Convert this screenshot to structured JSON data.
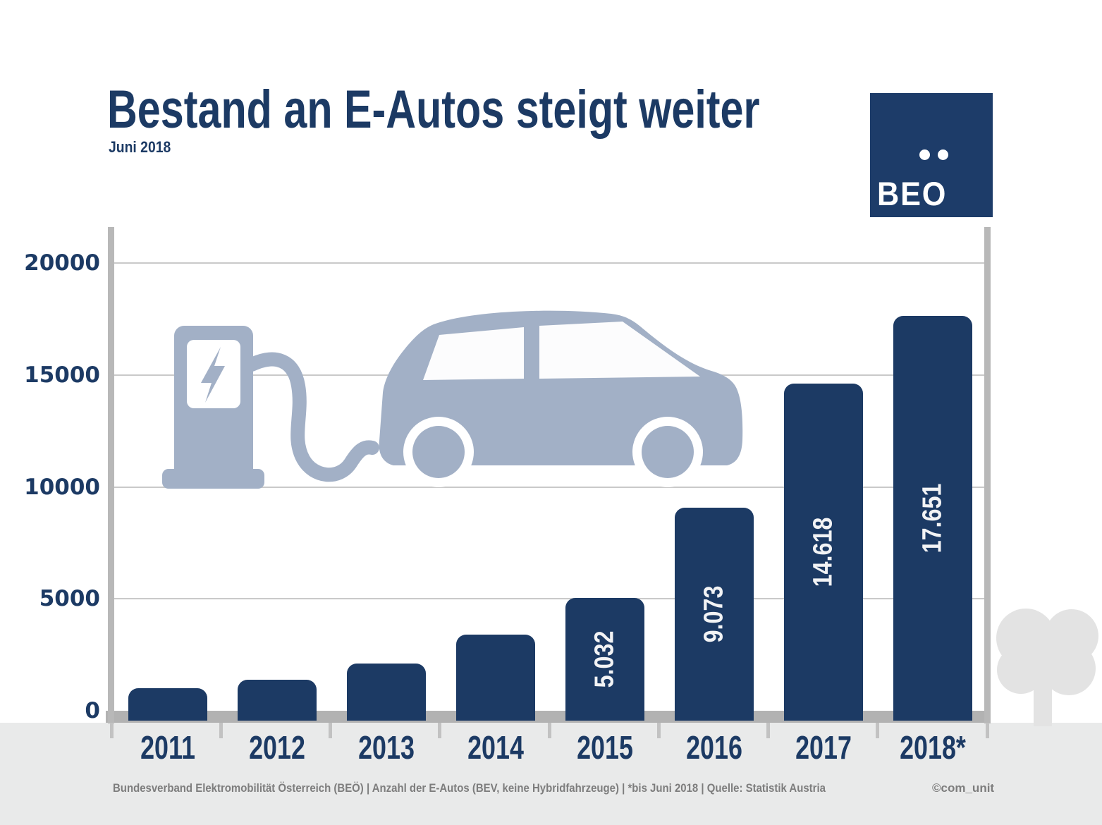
{
  "header": {
    "title": "Bestand an E-Autos steigt weiter",
    "subtitle": "Juni 2018"
  },
  "logo": {
    "text": "BEO"
  },
  "chart_data": {
    "type": "bar",
    "categories": [
      "2011",
      "2012",
      "2013",
      "2014",
      "2015",
      "2016",
      "2017",
      "2018*"
    ],
    "values": [
      1000,
      1400,
      2100,
      3400,
      5032,
      9073,
      14618,
      17651
    ],
    "bar_labels": [
      "",
      "",
      "",
      "",
      "5.032",
      "9.073",
      "14.618",
      "17.651"
    ],
    "title": "Bestand an E-Autos steigt weiter",
    "xlabel": "",
    "ylabel": "",
    "ylim": [
      0,
      20000
    ],
    "yticks": [
      0,
      5000,
      10000,
      15000,
      20000
    ],
    "ytick_labels": [
      "0",
      "5000",
      "10000",
      "15000",
      "20000"
    ],
    "grid": true,
    "legend": "none",
    "bar_color": "#1c3a64",
    "bar_label_color": "#f2f3f5"
  },
  "footer": {
    "source": "Bundesverband Elektromobilität Österreich (BEÖ) | Anzahl der E-Autos (BEV, keine Hybridfahrzeuge) | *bis Juni 2018 | Quelle: Statistik Austria",
    "credit": "©com_unit"
  },
  "colors": {
    "navy": "#1c3a64",
    "logo_navy": "#1d3c69",
    "graphic_blue": "#a2b0c6",
    "axis_gray": "#b8b8b8",
    "grid_gray": "#c9c9c9",
    "band_gray": "#b2b2b2",
    "footer_bg": "#e9eaea",
    "tree_gray": "#e3e3e3",
    "footer_text_gray": "#7d7d7d"
  }
}
